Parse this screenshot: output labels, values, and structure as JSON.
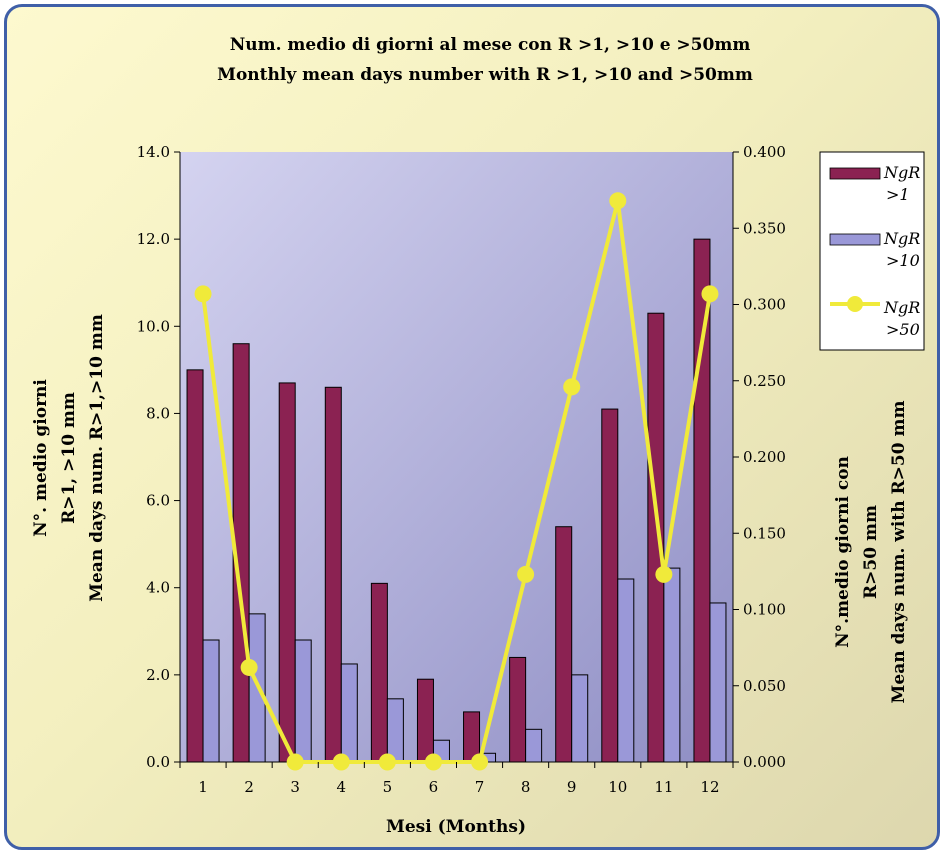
{
  "chart_data": {
    "type": "bar",
    "title_line1": "Num. medio di giorni al mese con R >1, >10 e >50mm",
    "title_line2": "Monthly mean days number with R >1, >10 and >50mm",
    "xlabel": "Mesi (Months)",
    "ylabel_left": [
      "N°. medio giorni",
      "R>1, >10 mm",
      "Mean days num. R>1,>10 mm"
    ],
    "ylabel_right": [
      "N°.medio giorni con",
      "R>50 mm",
      "Mean days num. with R>50 mm"
    ],
    "categories": [
      "1",
      "2",
      "3",
      "4",
      "5",
      "6",
      "7",
      "8",
      "9",
      "10",
      "11",
      "12"
    ],
    "y_left": {
      "min": 0,
      "max": 14,
      "step": 2,
      "ticks": [
        "0.0",
        "2.0",
        "4.0",
        "6.0",
        "8.0",
        "10.0",
        "12.0",
        "14.0"
      ]
    },
    "y_right": {
      "min": 0,
      "max": 0.4,
      "step": 0.05,
      "ticks": [
        "0.000",
        "0.050",
        "0.100",
        "0.150",
        "0.200",
        "0.250",
        "0.300",
        "0.350",
        "0.400"
      ]
    },
    "series": [
      {
        "name": "NgR >1",
        "legend_lines": [
          "NgR",
          ">1"
        ],
        "kind": "bar",
        "axis": "left",
        "color": "#8b2252",
        "values": [
          9.0,
          9.6,
          8.7,
          8.6,
          4.1,
          1.9,
          1.15,
          2.4,
          5.4,
          8.1,
          10.3,
          12.0
        ]
      },
      {
        "name": "NgR >10",
        "legend_lines": [
          "NgR",
          ">10"
        ],
        "kind": "bar",
        "axis": "left",
        "color": "#9a98d8",
        "values": [
          2.8,
          3.4,
          2.8,
          2.25,
          1.45,
          0.5,
          0.2,
          0.75,
          2.0,
          4.2,
          4.45,
          3.65
        ]
      },
      {
        "name": "NgR >50",
        "legend_lines": [
          "NgR",
          ">50"
        ],
        "kind": "line",
        "axis": "right",
        "color": "#f0ea3a",
        "values": [
          0.307,
          0.062,
          0.0,
          0.0,
          0.0,
          0.0,
          0.0,
          0.123,
          0.246,
          0.368,
          0.123,
          0.307
        ]
      }
    ],
    "legend_position": "right"
  }
}
